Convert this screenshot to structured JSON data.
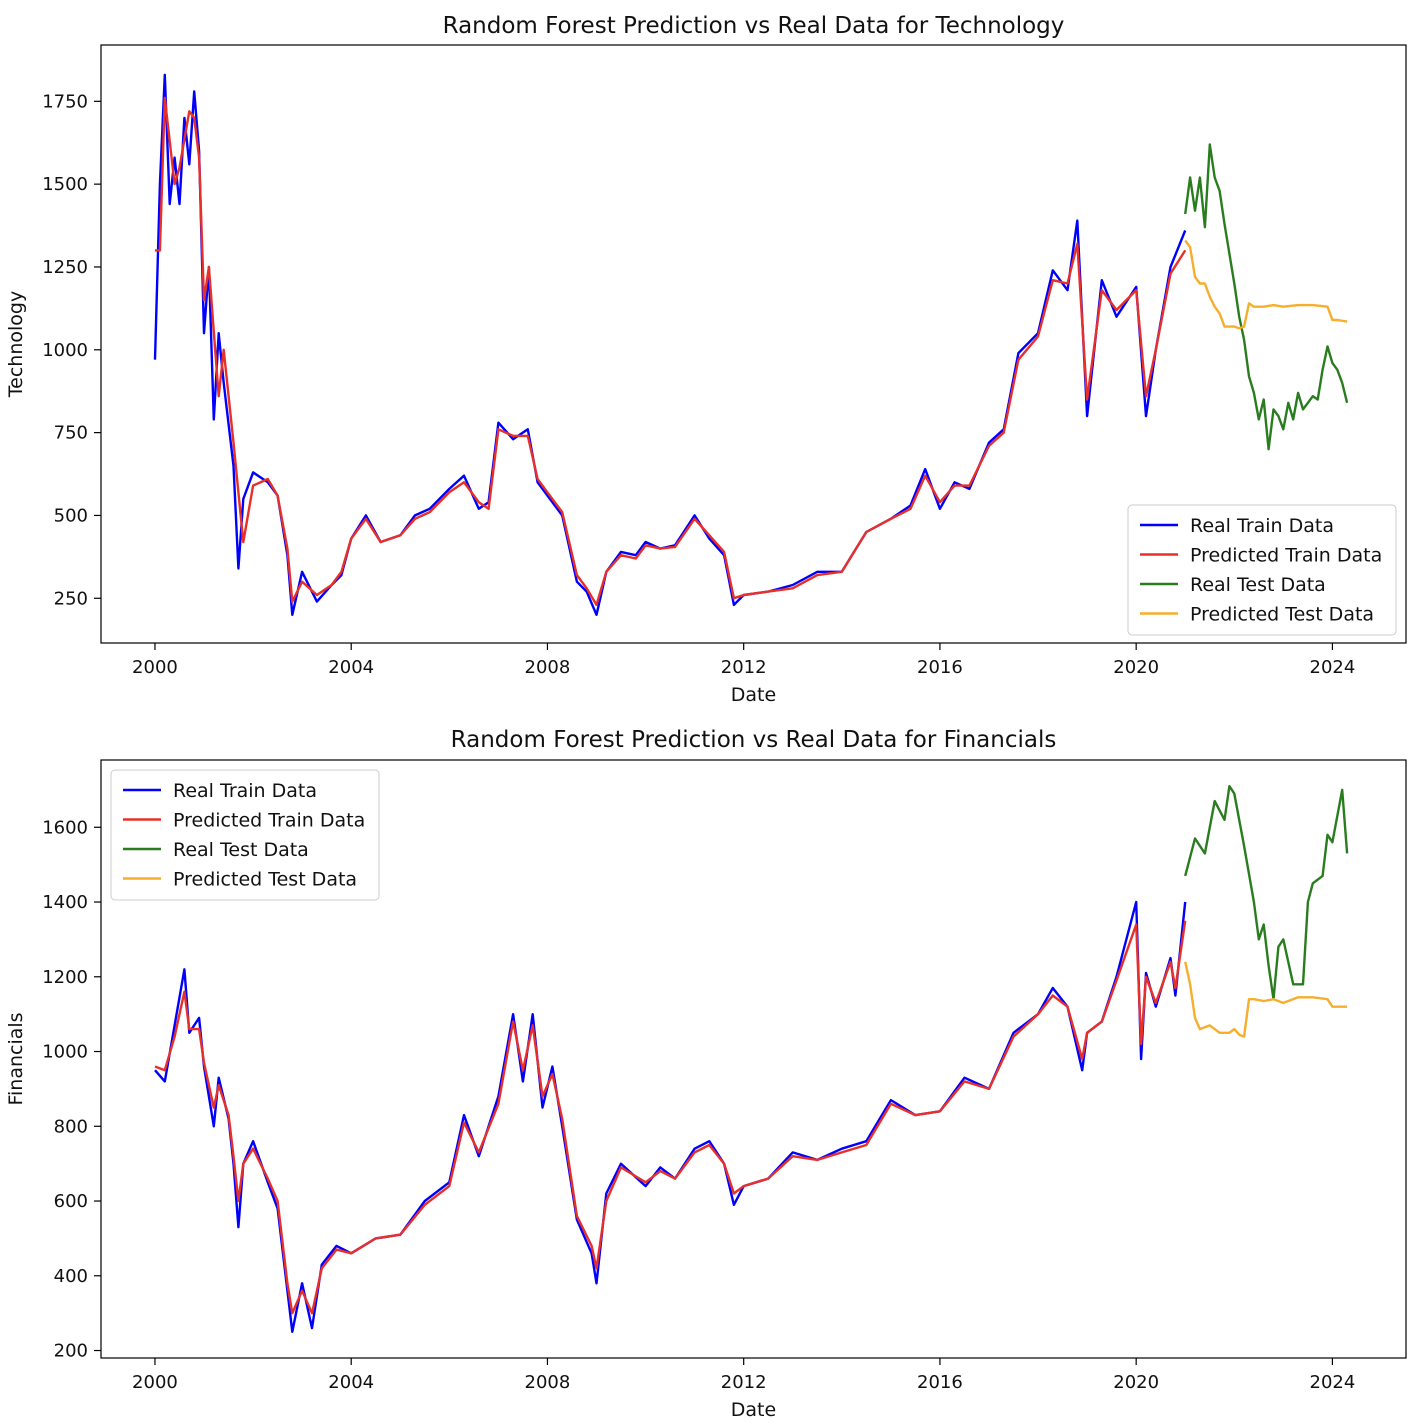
{
  "chart_data": [
    {
      "type": "line",
      "title": "Random Forest Prediction vs Real Data for Technology",
      "xlabel": "Date",
      "ylabel": "Technology",
      "xlim": [
        1998.9,
        2025.5
      ],
      "ylim": [
        115,
        1920
      ],
      "xticks": [
        2000,
        2004,
        2008,
        2012,
        2016,
        2020,
        2024
      ],
      "yticks": [
        250,
        500,
        750,
        1000,
        1250,
        1500,
        1750
      ],
      "legend": "lower-right",
      "grid": false,
      "series": [
        {
          "name": "Real Train Data",
          "color": "#0000ff",
          "x": [
            2000.0,
            2000.1,
            2000.2,
            2000.3,
            2000.4,
            2000.5,
            2000.6,
            2000.7,
            2000.8,
            2000.9,
            2001.0,
            2001.1,
            2001.2,
            2001.3,
            2001.4,
            2001.6,
            2001.7,
            2001.8,
            2002.0,
            2002.3,
            2002.5,
            2002.7,
            2002.8,
            2003.0,
            2003.3,
            2003.6,
            2003.8,
            2004.0,
            2004.3,
            2004.6,
            2005.0,
            2005.3,
            2005.6,
            2006.0,
            2006.3,
            2006.6,
            2006.8,
            2007.0,
            2007.3,
            2007.6,
            2007.8,
            2008.0,
            2008.3,
            2008.6,
            2008.8,
            2009.0,
            2009.2,
            2009.5,
            2009.8,
            2010.0,
            2010.3,
            2010.6,
            2011.0,
            2011.3,
            2011.6,
            2011.8,
            2012.0,
            2012.5,
            2013.0,
            2013.5,
            2014.0,
            2014.5,
            2015.0,
            2015.4,
            2015.7,
            2016.0,
            2016.3,
            2016.6,
            2017.0,
            2017.3,
            2017.6,
            2018.0,
            2018.3,
            2018.6,
            2018.8,
            2019.0,
            2019.3,
            2019.6,
            2020.0,
            2020.2,
            2020.4,
            2020.7,
            2021.0
          ],
          "values": [
            970,
            1500,
            1830,
            1440,
            1580,
            1440,
            1700,
            1560,
            1780,
            1600,
            1050,
            1250,
            790,
            1050,
            900,
            650,
            340,
            550,
            630,
            600,
            560,
            380,
            200,
            330,
            240,
            290,
            320,
            430,
            500,
            420,
            440,
            500,
            520,
            580,
            620,
            520,
            540,
            780,
            730,
            760,
            600,
            560,
            500,
            300,
            270,
            200,
            330,
            390,
            380,
            420,
            400,
            410,
            500,
            430,
            380,
            230,
            260,
            270,
            290,
            330,
            330,
            450,
            490,
            530,
            640,
            520,
            600,
            580,
            720,
            760,
            990,
            1050,
            1240,
            1180,
            1390,
            800,
            1210,
            1100,
            1190,
            800,
            1000,
            1250,
            1360
          ]
        },
        {
          "name": "Predicted Train Data",
          "color": "#e8302a",
          "x": [
            2000.0,
            2000.1,
            2000.2,
            2000.4,
            2000.5,
            2000.7,
            2000.8,
            2000.9,
            2001.0,
            2001.1,
            2001.3,
            2001.4,
            2001.6,
            2001.8,
            2002.0,
            2002.3,
            2002.5,
            2002.7,
            2002.8,
            2003.0,
            2003.3,
            2003.6,
            2003.8,
            2004.0,
            2004.3,
            2004.6,
            2005.0,
            2005.3,
            2005.6,
            2006.0,
            2006.3,
            2006.6,
            2006.8,
            2007.0,
            2007.3,
            2007.6,
            2007.8,
            2008.0,
            2008.3,
            2008.6,
            2008.8,
            2009.0,
            2009.2,
            2009.5,
            2009.8,
            2010.0,
            2010.3,
            2010.6,
            2011.0,
            2011.3,
            2011.6,
            2011.8,
            2012.0,
            2012.5,
            2013.0,
            2013.5,
            2014.0,
            2014.5,
            2015.0,
            2015.4,
            2015.7,
            2016.0,
            2016.3,
            2016.6,
            2017.0,
            2017.3,
            2017.6,
            2018.0,
            2018.3,
            2018.6,
            2018.8,
            2019.0,
            2019.3,
            2019.6,
            2020.0,
            2020.2,
            2020.4,
            2020.7,
            2021.0
          ],
          "values": [
            1300,
            1300,
            1760,
            1500,
            1550,
            1720,
            1700,
            1580,
            1150,
            1250,
            860,
            1000,
            720,
            420,
            590,
            610,
            560,
            400,
            240,
            300,
            260,
            290,
            330,
            430,
            490,
            420,
            440,
            490,
            510,
            570,
            600,
            540,
            520,
            760,
            740,
            740,
            610,
            570,
            510,
            320,
            280,
            230,
            330,
            380,
            370,
            410,
            400,
            405,
            490,
            440,
            390,
            250,
            260,
            270,
            280,
            320,
            330,
            450,
            490,
            520,
            620,
            540,
            590,
            590,
            710,
            750,
            970,
            1040,
            1210,
            1200,
            1320,
            850,
            1180,
            1120,
            1180,
            860,
            1000,
            1230,
            1300
          ]
        },
        {
          "name": "Real Test Data",
          "color": "#2a7d1f",
          "x": [
            2021.0,
            2021.1,
            2021.2,
            2021.3,
            2021.4,
            2021.5,
            2021.6,
            2021.7,
            2021.8,
            2021.9,
            2022.0,
            2022.1,
            2022.2,
            2022.3,
            2022.4,
            2022.5,
            2022.6,
            2022.7,
            2022.8,
            2022.9,
            2023.0,
            2023.1,
            2023.2,
            2023.3,
            2023.4,
            2023.5,
            2023.6,
            2023.7,
            2023.8,
            2023.9,
            2024.0,
            2024.1,
            2024.2,
            2024.3
          ],
          "values": [
            1410,
            1520,
            1420,
            1520,
            1370,
            1620,
            1520,
            1480,
            1380,
            1290,
            1200,
            1100,
            1030,
            920,
            870,
            790,
            850,
            700,
            820,
            800,
            760,
            840,
            790,
            870,
            820,
            840,
            860,
            850,
            940,
            1010,
            960,
            940,
            900,
            840
          ]
        },
        {
          "name": "Predicted Test Data",
          "color": "#f6ae2d",
          "x": [
            2021.0,
            2021.1,
            2021.2,
            2021.3,
            2021.4,
            2021.5,
            2021.6,
            2021.7,
            2021.8,
            2021.9,
            2022.0,
            2022.1,
            2022.2,
            2022.3,
            2022.4,
            2022.6,
            2022.8,
            2023.0,
            2023.3,
            2023.6,
            2023.9,
            2024.0,
            2024.1,
            2024.3
          ],
          "values": [
            1330,
            1310,
            1220,
            1200,
            1200,
            1160,
            1130,
            1110,
            1070,
            1070,
            1070,
            1065,
            1070,
            1140,
            1130,
            1130,
            1135,
            1130,
            1135,
            1135,
            1130,
            1090,
            1090,
            1085
          ]
        }
      ]
    },
    {
      "type": "line",
      "title": "Random Forest Prediction vs Real Data for Financials",
      "xlabel": "Date",
      "ylabel": "Financials",
      "xlim": [
        1998.9,
        2025.5
      ],
      "ylim": [
        180,
        1780
      ],
      "xticks": [
        2000,
        2004,
        2008,
        2012,
        2016,
        2020,
        2024
      ],
      "yticks": [
        200,
        400,
        600,
        800,
        1000,
        1200,
        1400,
        1600
      ],
      "legend": "upper-left",
      "grid": false,
      "series": [
        {
          "name": "Real Train Data",
          "color": "#0000ff",
          "x": [
            2000.0,
            2000.2,
            2000.4,
            2000.6,
            2000.7,
            2000.9,
            2001.0,
            2001.2,
            2001.3,
            2001.5,
            2001.6,
            2001.7,
            2001.8,
            2002.0,
            2002.3,
            2002.5,
            2002.7,
            2002.8,
            2003.0,
            2003.2,
            2003.4,
            2003.7,
            2004.0,
            2004.5,
            2005.0,
            2005.5,
            2006.0,
            2006.3,
            2006.6,
            2007.0,
            2007.3,
            2007.5,
            2007.7,
            2007.9,
            2008.1,
            2008.3,
            2008.6,
            2008.9,
            2009.0,
            2009.2,
            2009.5,
            2010.0,
            2010.3,
            2010.6,
            2011.0,
            2011.3,
            2011.6,
            2011.8,
            2012.0,
            2012.5,
            2013.0,
            2013.5,
            2014.0,
            2014.5,
            2015.0,
            2015.5,
            2016.0,
            2016.5,
            2017.0,
            2017.5,
            2018.0,
            2018.3,
            2018.6,
            2018.9,
            2019.0,
            2019.3,
            2019.6,
            2020.0,
            2020.1,
            2020.2,
            2020.4,
            2020.7,
            2020.8,
            2021.0
          ],
          "values": [
            950,
            920,
            1070,
            1220,
            1050,
            1090,
            960,
            800,
            930,
            820,
            700,
            530,
            700,
            760,
            650,
            580,
            360,
            250,
            380,
            260,
            430,
            480,
            460,
            500,
            510,
            600,
            650,
            830,
            720,
            880,
            1100,
            920,
            1100,
            850,
            960,
            800,
            550,
            460,
            380,
            620,
            700,
            640,
            690,
            660,
            740,
            760,
            700,
            590,
            640,
            660,
            730,
            710,
            740,
            760,
            870,
            830,
            840,
            930,
            900,
            1050,
            1100,
            1170,
            1120,
            950,
            1050,
            1080,
            1200,
            1400,
            980,
            1210,
            1120,
            1250,
            1150,
            1400
          ]
        },
        {
          "name": "Predicted Train Data",
          "color": "#e8302a",
          "x": [
            2000.0,
            2000.2,
            2000.4,
            2000.6,
            2000.7,
            2000.9,
            2001.0,
            2001.2,
            2001.3,
            2001.5,
            2001.6,
            2001.7,
            2001.8,
            2002.0,
            2002.3,
            2002.5,
            2002.7,
            2002.8,
            2003.0,
            2003.2,
            2003.4,
            2003.7,
            2004.0,
            2004.5,
            2005.0,
            2005.5,
            2006.0,
            2006.3,
            2006.6,
            2007.0,
            2007.3,
            2007.5,
            2007.7,
            2007.9,
            2008.1,
            2008.3,
            2008.6,
            2008.9,
            2009.0,
            2009.2,
            2009.5,
            2010.0,
            2010.3,
            2010.6,
            2011.0,
            2011.3,
            2011.6,
            2011.8,
            2012.0,
            2012.5,
            2013.0,
            2013.5,
            2014.0,
            2014.5,
            2015.0,
            2015.5,
            2016.0,
            2016.5,
            2017.0,
            2017.5,
            2018.0,
            2018.3,
            2018.6,
            2018.9,
            2019.0,
            2019.3,
            2019.6,
            2020.0,
            2020.1,
            2020.2,
            2020.4,
            2020.7,
            2020.8,
            2021.0
          ],
          "values": [
            960,
            950,
            1040,
            1160,
            1060,
            1060,
            970,
            850,
            910,
            830,
            720,
            600,
            700,
            740,
            660,
            600,
            380,
            300,
            360,
            300,
            420,
            470,
            460,
            500,
            510,
            590,
            640,
            810,
            730,
            860,
            1080,
            950,
            1070,
            880,
            940,
            820,
            560,
            480,
            420,
            600,
            690,
            650,
            680,
            660,
            730,
            750,
            700,
            620,
            640,
            660,
            720,
            710,
            730,
            750,
            860,
            830,
            840,
            920,
            900,
            1040,
            1100,
            1150,
            1120,
            980,
            1050,
            1080,
            1190,
            1340,
            1020,
            1200,
            1130,
            1240,
            1170,
            1350
          ]
        },
        {
          "name": "Real Test Data",
          "color": "#2a7d1f",
          "x": [
            2021.0,
            2021.2,
            2021.4,
            2021.6,
            2021.8,
            2021.9,
            2022.0,
            2022.2,
            2022.4,
            2022.5,
            2022.6,
            2022.7,
            2022.8,
            2022.9,
            2023.0,
            2023.2,
            2023.4,
            2023.5,
            2023.6,
            2023.8,
            2023.9,
            2024.0,
            2024.2,
            2024.3
          ],
          "values": [
            1470,
            1570,
            1530,
            1670,
            1620,
            1710,
            1690,
            1550,
            1400,
            1300,
            1340,
            1230,
            1140,
            1280,
            1300,
            1180,
            1180,
            1400,
            1450,
            1470,
            1580,
            1560,
            1700,
            1530
          ]
        },
        {
          "name": "Predicted Test Data",
          "color": "#f6ae2d",
          "x": [
            2021.0,
            2021.1,
            2021.2,
            2021.3,
            2021.5,
            2021.7,
            2021.9,
            2022.0,
            2022.1,
            2022.2,
            2022.3,
            2022.4,
            2022.6,
            2022.8,
            2023.0,
            2023.3,
            2023.6,
            2023.9,
            2024.0,
            2024.1,
            2024.3
          ],
          "values": [
            1240,
            1180,
            1090,
            1060,
            1070,
            1050,
            1050,
            1060,
            1045,
            1040,
            1140,
            1140,
            1135,
            1140,
            1130,
            1145,
            1145,
            1140,
            1120,
            1120,
            1120
          ]
        }
      ]
    }
  ]
}
